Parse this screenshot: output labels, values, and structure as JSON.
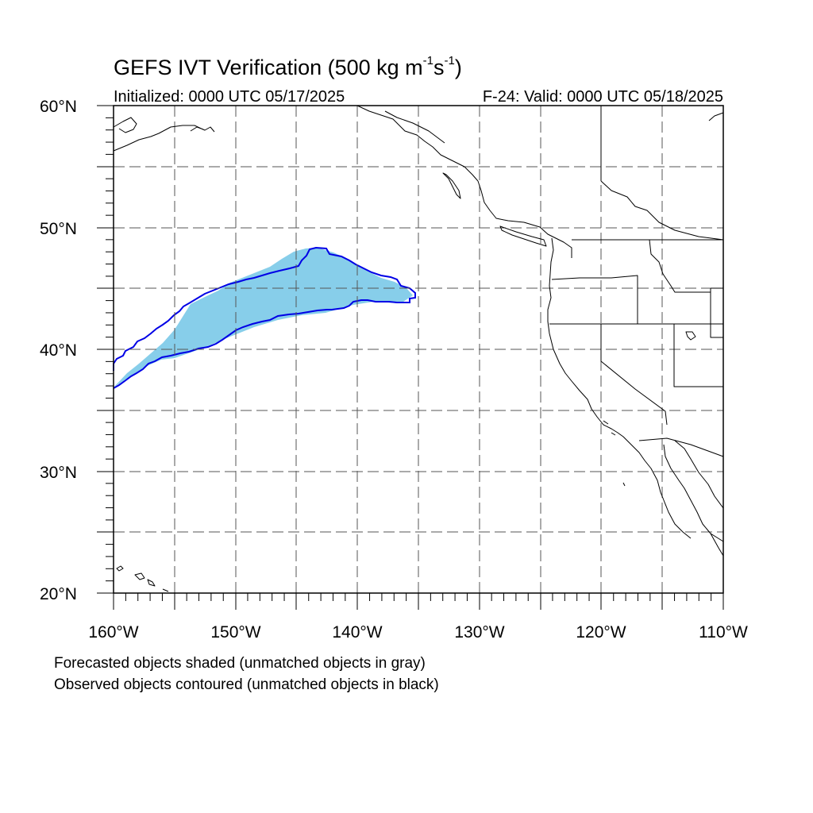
{
  "title": {
    "main": "GEFS IVT Verification (500 kg m",
    "exp1": "-1",
    "mid": "s",
    "exp2": "-1",
    "end": ")"
  },
  "initialized": "Initialized: 0000 UTC 05/17/2025",
  "valid": "F-24: Valid: 0000 UTC 05/18/2025",
  "lat_labels": [
    "60°N",
    "50°N",
    "40°N",
    "30°N",
    "20°N"
  ],
  "lon_labels": [
    "160°W",
    "150°W",
    "140°W",
    "130°W",
    "120°W",
    "110°W"
  ],
  "footnotes": [
    "Forecasted objects shaded (unmatched objects in gray)",
    "Observed objects contoured (unmatched objects in black)"
  ],
  "colors": {
    "forecast_fill": "#87ceea",
    "observed_contour": "#0000e6",
    "coastline": "#000000",
    "grid": "#555555"
  },
  "map_extent": {
    "lon_range": [
      -160,
      -110
    ],
    "lat_range": [
      20,
      60
    ]
  }
}
